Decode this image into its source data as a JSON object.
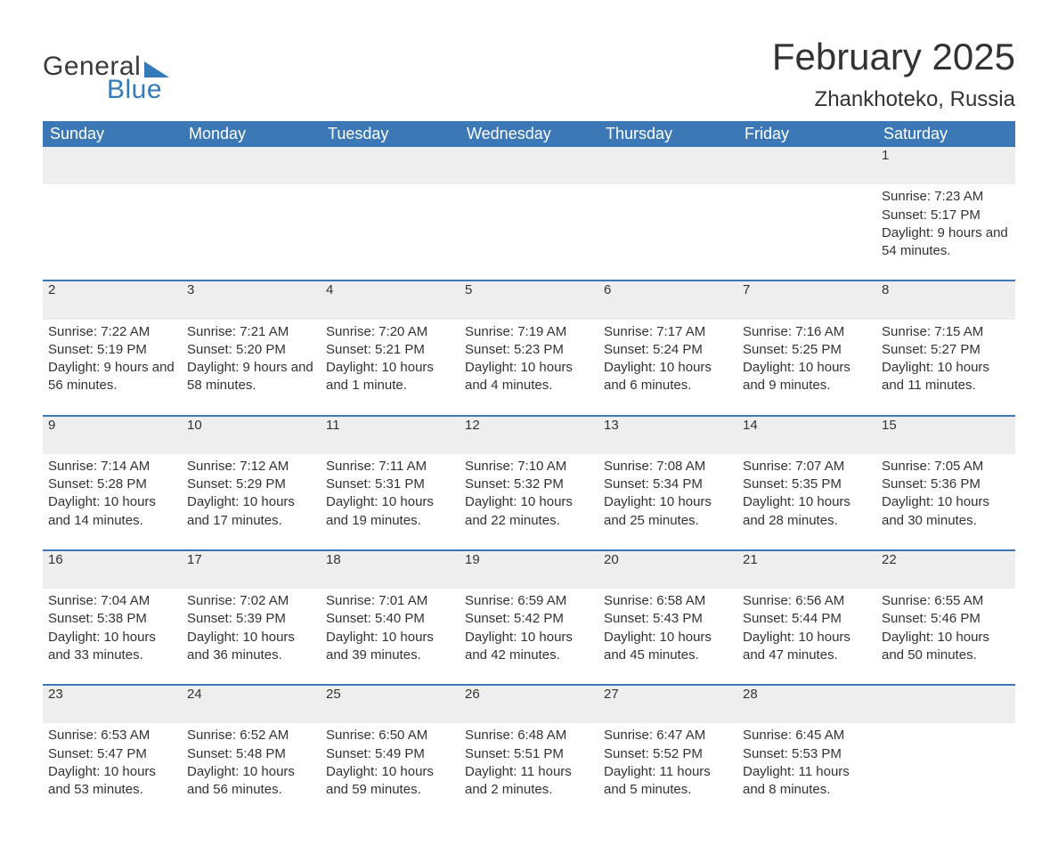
{
  "logo": {
    "text1": "General",
    "text2": "Blue",
    "triangle_color": "#337ab7"
  },
  "title": "February 2025",
  "location": "Zhankhoteko, Russia",
  "colors": {
    "header_bg": "#3b78b5",
    "header_text": "#ffffff",
    "daynum_bg": "#eeeeee",
    "divider": "#3b78b5",
    "body_text": "#333333",
    "background": "#ffffff"
  },
  "typography": {
    "title_fontsize": 42,
    "location_fontsize": 24,
    "header_fontsize": 18,
    "body_fontsize": 15,
    "font_family": "Arial"
  },
  "layout": {
    "columns": 7,
    "start_day_index": 6
  },
  "weekdays": [
    "Sunday",
    "Monday",
    "Tuesday",
    "Wednesday",
    "Thursday",
    "Friday",
    "Saturday"
  ],
  "labels": {
    "sunrise": "Sunrise:",
    "sunset": "Sunset:",
    "daylight": "Daylight:"
  },
  "days": [
    {
      "n": 1,
      "sunrise": "7:23 AM",
      "sunset": "5:17 PM",
      "daylight": "9 hours and 54 minutes."
    },
    {
      "n": 2,
      "sunrise": "7:22 AM",
      "sunset": "5:19 PM",
      "daylight": "9 hours and 56 minutes."
    },
    {
      "n": 3,
      "sunrise": "7:21 AM",
      "sunset": "5:20 PM",
      "daylight": "9 hours and 58 minutes."
    },
    {
      "n": 4,
      "sunrise": "7:20 AM",
      "sunset": "5:21 PM",
      "daylight": "10 hours and 1 minute."
    },
    {
      "n": 5,
      "sunrise": "7:19 AM",
      "sunset": "5:23 PM",
      "daylight": "10 hours and 4 minutes."
    },
    {
      "n": 6,
      "sunrise": "7:17 AM",
      "sunset": "5:24 PM",
      "daylight": "10 hours and 6 minutes."
    },
    {
      "n": 7,
      "sunrise": "7:16 AM",
      "sunset": "5:25 PM",
      "daylight": "10 hours and 9 minutes."
    },
    {
      "n": 8,
      "sunrise": "7:15 AM",
      "sunset": "5:27 PM",
      "daylight": "10 hours and 11 minutes."
    },
    {
      "n": 9,
      "sunrise": "7:14 AM",
      "sunset": "5:28 PM",
      "daylight": "10 hours and 14 minutes."
    },
    {
      "n": 10,
      "sunrise": "7:12 AM",
      "sunset": "5:29 PM",
      "daylight": "10 hours and 17 minutes."
    },
    {
      "n": 11,
      "sunrise": "7:11 AM",
      "sunset": "5:31 PM",
      "daylight": "10 hours and 19 minutes."
    },
    {
      "n": 12,
      "sunrise": "7:10 AM",
      "sunset": "5:32 PM",
      "daylight": "10 hours and 22 minutes."
    },
    {
      "n": 13,
      "sunrise": "7:08 AM",
      "sunset": "5:34 PM",
      "daylight": "10 hours and 25 minutes."
    },
    {
      "n": 14,
      "sunrise": "7:07 AM",
      "sunset": "5:35 PM",
      "daylight": "10 hours and 28 minutes."
    },
    {
      "n": 15,
      "sunrise": "7:05 AM",
      "sunset": "5:36 PM",
      "daylight": "10 hours and 30 minutes."
    },
    {
      "n": 16,
      "sunrise": "7:04 AM",
      "sunset": "5:38 PM",
      "daylight": "10 hours and 33 minutes."
    },
    {
      "n": 17,
      "sunrise": "7:02 AM",
      "sunset": "5:39 PM",
      "daylight": "10 hours and 36 minutes."
    },
    {
      "n": 18,
      "sunrise": "7:01 AM",
      "sunset": "5:40 PM",
      "daylight": "10 hours and 39 minutes."
    },
    {
      "n": 19,
      "sunrise": "6:59 AM",
      "sunset": "5:42 PM",
      "daylight": "10 hours and 42 minutes."
    },
    {
      "n": 20,
      "sunrise": "6:58 AM",
      "sunset": "5:43 PM",
      "daylight": "10 hours and 45 minutes."
    },
    {
      "n": 21,
      "sunrise": "6:56 AM",
      "sunset": "5:44 PM",
      "daylight": "10 hours and 47 minutes."
    },
    {
      "n": 22,
      "sunrise": "6:55 AM",
      "sunset": "5:46 PM",
      "daylight": "10 hours and 50 minutes."
    },
    {
      "n": 23,
      "sunrise": "6:53 AM",
      "sunset": "5:47 PM",
      "daylight": "10 hours and 53 minutes."
    },
    {
      "n": 24,
      "sunrise": "6:52 AM",
      "sunset": "5:48 PM",
      "daylight": "10 hours and 56 minutes."
    },
    {
      "n": 25,
      "sunrise": "6:50 AM",
      "sunset": "5:49 PM",
      "daylight": "10 hours and 59 minutes."
    },
    {
      "n": 26,
      "sunrise": "6:48 AM",
      "sunset": "5:51 PM",
      "daylight": "11 hours and 2 minutes."
    },
    {
      "n": 27,
      "sunrise": "6:47 AM",
      "sunset": "5:52 PM",
      "daylight": "11 hours and 5 minutes."
    },
    {
      "n": 28,
      "sunrise": "6:45 AM",
      "sunset": "5:53 PM",
      "daylight": "11 hours and 8 minutes."
    }
  ]
}
